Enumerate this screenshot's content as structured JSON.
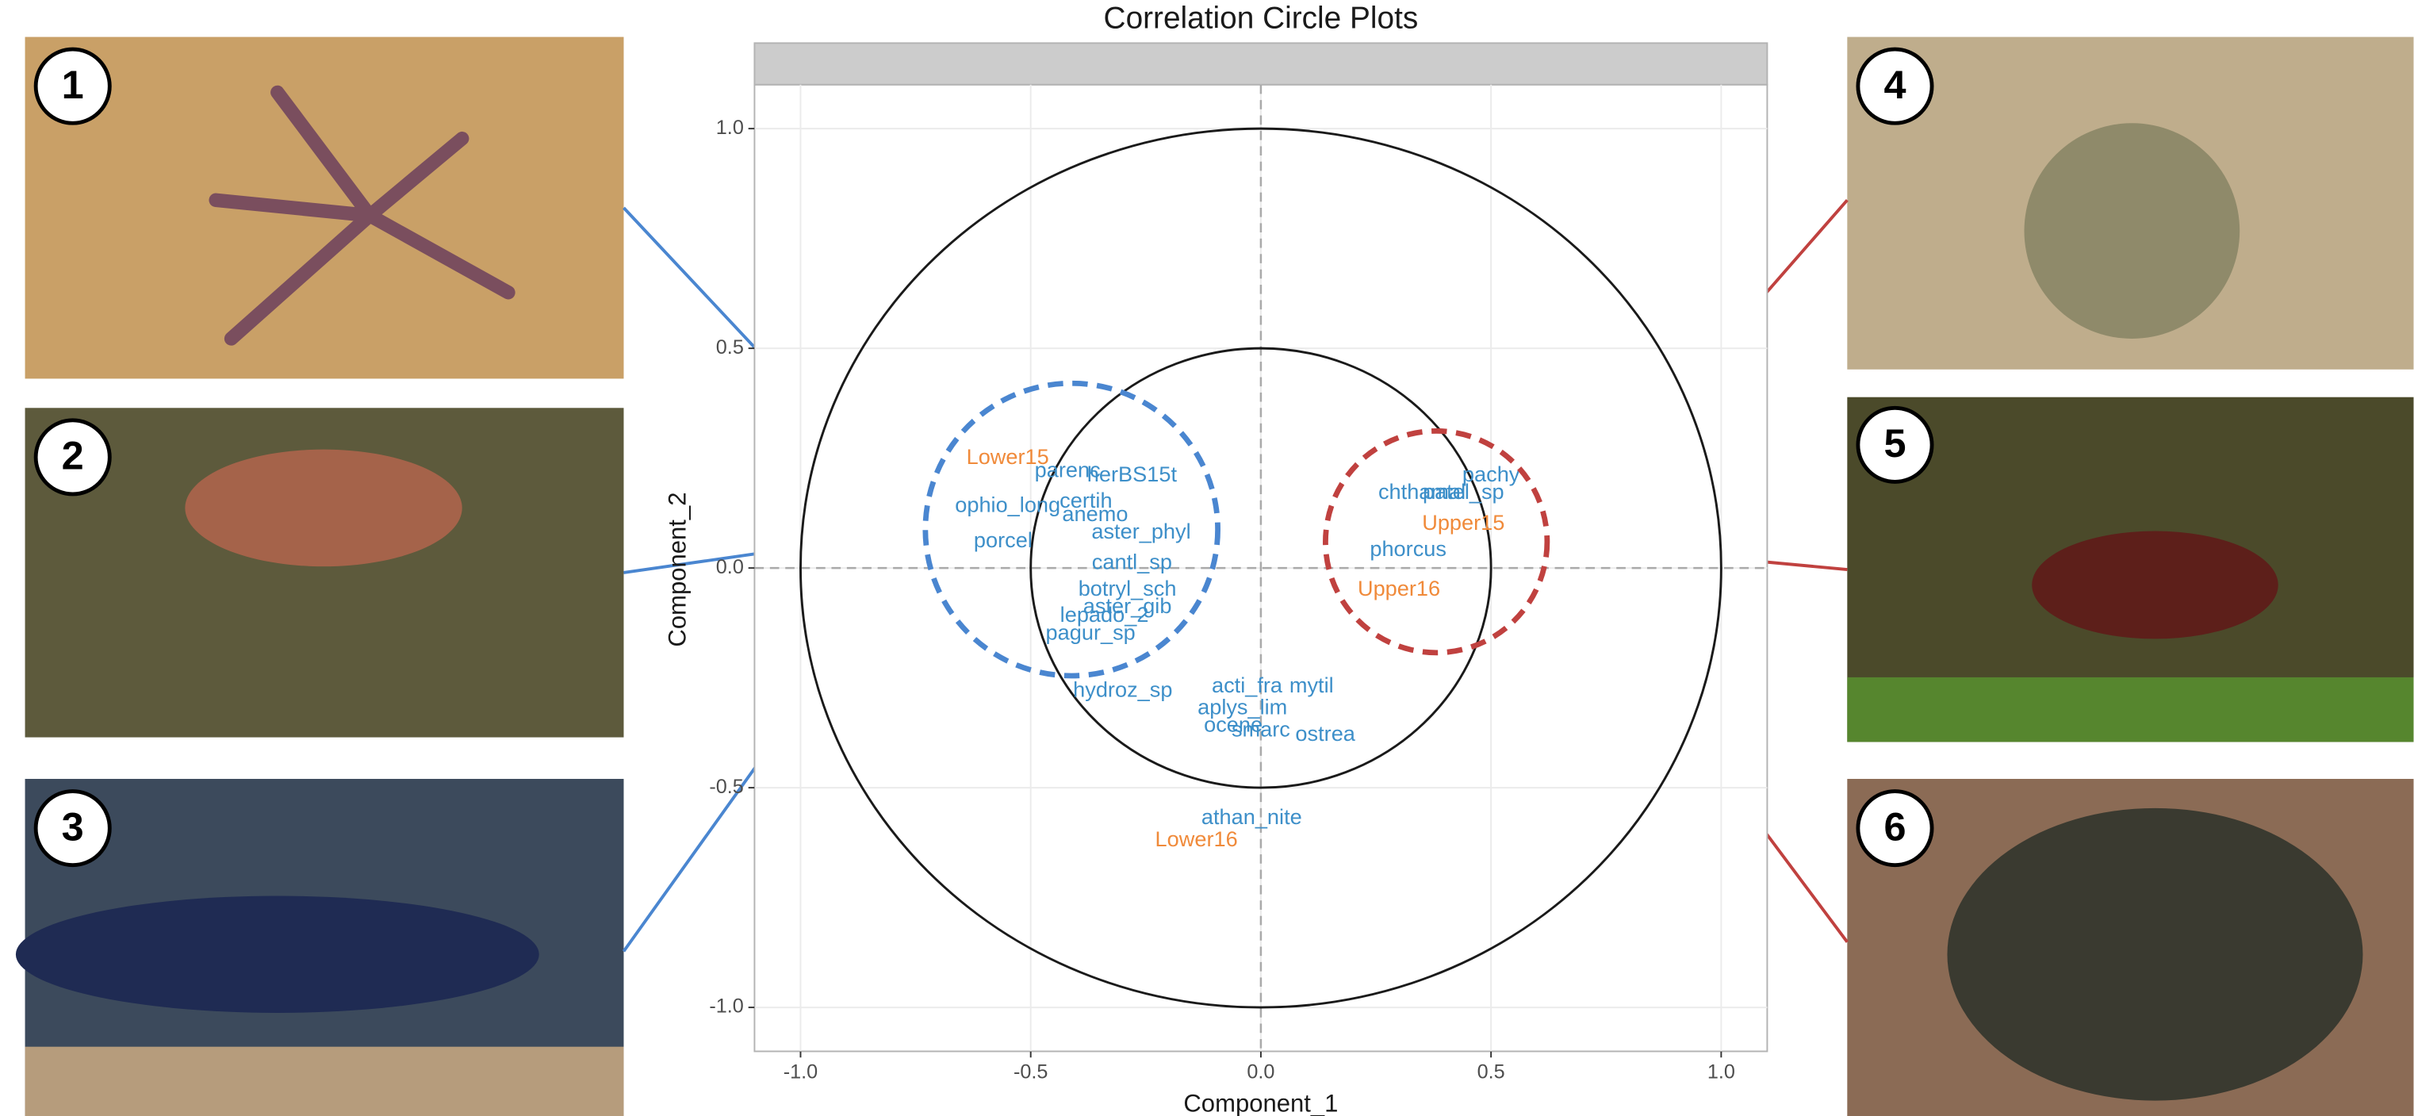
{
  "chart_data": {
    "type": "scatter",
    "title": "Correlation Circle Plots",
    "x_label": "Component_1",
    "y_label": "Component_2",
    "xlim": [
      -1.1,
      1.1
    ],
    "ylim": [
      -1.1,
      1.1
    ],
    "xticks": [
      {
        "value": -1,
        "label": "-1.0"
      },
      {
        "value": -0.5,
        "label": "-0.5"
      },
      {
        "value": 0,
        "label": "0.0"
      },
      {
        "value": 0.5,
        "label": "0.5"
      },
      {
        "value": 1,
        "label": "1.0"
      }
    ],
    "yticks": [
      {
        "value": -1,
        "label": "-1.0"
      },
      {
        "value": -0.5,
        "label": "-0.5"
      },
      {
        "value": 0,
        "label": "0.0"
      },
      {
        "value": 0.5,
        "label": "0.5"
      },
      {
        "value": 1,
        "label": "1.0"
      }
    ],
    "grid": true,
    "circle_radii": [
      1,
      0.5
    ],
    "series": [
      {
        "color": "#3d8fc9",
        "labels": [
          "parenc",
          "herBS15t",
          "certih",
          "ophio_long",
          "anemo",
          "aster_phyl",
          "porcel",
          "cantl_sp",
          "botryl_sch",
          "aster_gib",
          "lepado_2",
          "pagur_sp",
          "hydroz_sp",
          "acti_fra",
          "mytil",
          "aplys_lim",
          "ocene",
          "smarc",
          "ostrea",
          "athan_nite",
          "pachy",
          "chthamal",
          "patel_sp",
          "phorcus"
        ],
        "x": [
          -0.42,
          -0.28,
          -0.38,
          -0.55,
          -0.36,
          -0.26,
          -0.56,
          -0.28,
          -0.29,
          -0.29,
          -0.34,
          -0.37,
          -0.3,
          -0.03,
          0.11,
          -0.04,
          -0.06,
          0.0,
          0.14,
          -0.02,
          0.5,
          0.35,
          0.44,
          0.32
        ],
        "values": [
          0.22,
          0.21,
          0.15,
          0.14,
          0.12,
          0.08,
          0.06,
          0.01,
          -0.05,
          -0.09,
          -0.11,
          -0.15,
          -0.28,
          -0.27,
          -0.27,
          -0.32,
          -0.36,
          -0.37,
          -0.38,
          -0.57,
          0.21,
          0.17,
          0.17,
          0.04
        ]
      },
      {
        "color": "#f08a3a",
        "labels": [
          "Lower15",
          "Lower16",
          "Upper15",
          "Upper16"
        ],
        "x": [
          -0.55,
          -0.14,
          0.44,
          0.3
        ],
        "values": [
          0.25,
          -0.62,
          0.1,
          -0.05
        ]
      }
    ]
  },
  "photos": [
    "1",
    "2",
    "3",
    "4",
    "5",
    "6"
  ]
}
